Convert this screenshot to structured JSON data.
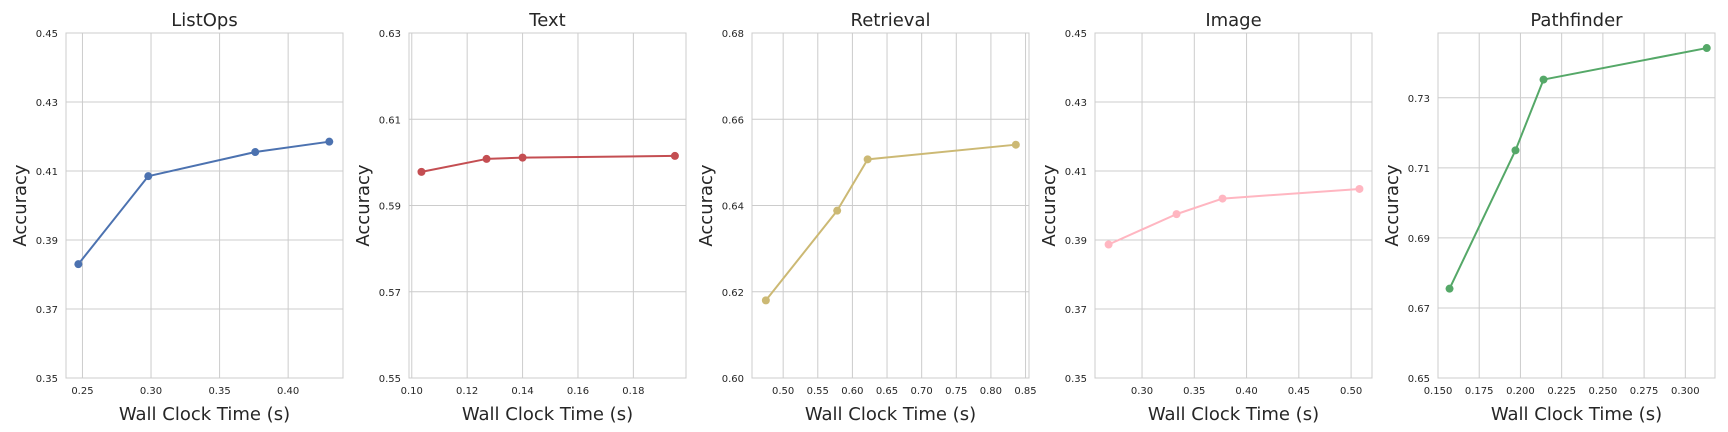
{
  "chart_data": [
    {
      "type": "line",
      "title": "ListOps",
      "xlabel": "Wall Clock Time (s)",
      "ylabel": "Accuracy",
      "color": "#4c72b0",
      "x": [
        0.247,
        0.298,
        0.376,
        0.43
      ],
      "y": [
        0.383,
        0.4085,
        0.4155,
        0.4185
      ],
      "xlim": [
        0.238,
        0.44
      ],
      "ylim": [
        0.35,
        0.45
      ],
      "xticks": [
        0.25,
        0.3,
        0.35,
        0.4
      ],
      "xtick_labels": [
        "0.25",
        "0.30",
        "0.35",
        "0.40"
      ],
      "yticks": [
        0.35,
        0.37,
        0.39,
        0.41,
        0.43,
        0.45
      ],
      "ytick_labels": [
        "0.35",
        "0.37",
        "0.39",
        "0.41",
        "0.43",
        "0.45"
      ],
      "grid": true
    },
    {
      "type": "line",
      "title": "Text",
      "xlabel": "Wall Clock Time (s)",
      "ylabel": "Accuracy",
      "color": "#c44e52",
      "x": [
        0.1035,
        0.127,
        0.14,
        0.195
      ],
      "y": [
        0.5978,
        0.6008,
        0.6011,
        0.6015
      ],
      "xlim": [
        0.099,
        0.199
      ],
      "ylim": [
        0.55,
        0.63
      ],
      "xticks": [
        0.1,
        0.12,
        0.14,
        0.16,
        0.18
      ],
      "xtick_labels": [
        "0.10",
        "0.12",
        "0.14",
        "0.16",
        "0.18"
      ],
      "yticks": [
        0.55,
        0.57,
        0.59,
        0.61,
        0.63
      ],
      "ytick_labels": [
        "0.55",
        "0.57",
        "0.59",
        "0.61",
        "0.63"
      ],
      "grid": true
    },
    {
      "type": "line",
      "title": "Retrieval",
      "xlabel": "Wall Clock Time (s)",
      "ylabel": "Accuracy",
      "color": "#ccb974",
      "x": [
        0.475,
        0.578,
        0.622,
        0.836
      ],
      "y": [
        0.618,
        0.6388,
        0.6507,
        0.6541
      ],
      "xlim": [
        0.455,
        0.855
      ],
      "ylim": [
        0.6,
        0.68
      ],
      "xticks": [
        0.5,
        0.55,
        0.6,
        0.65,
        0.7,
        0.75,
        0.8,
        0.85
      ],
      "xtick_labels": [
        "0.50",
        "0.55",
        "0.60",
        "0.65",
        "0.70",
        "0.75",
        "0.80",
        "0.85"
      ],
      "yticks": [
        0.6,
        0.62,
        0.64,
        0.66,
        0.68
      ],
      "ytick_labels": [
        "0.60",
        "0.62",
        "0.64",
        "0.66",
        "0.68"
      ],
      "grid": true
    },
    {
      "type": "line",
      "title": "Image",
      "xlabel": "Wall Clock Time (s)",
      "ylabel": "Accuracy",
      "color": "#ffb6c1",
      "x": [
        0.268,
        0.333,
        0.377,
        0.508
      ],
      "y": [
        0.3887,
        0.3975,
        0.402,
        0.4048
      ],
      "xlim": [
        0.255,
        0.52
      ],
      "ylim": [
        0.35,
        0.45
      ],
      "xticks": [
        0.3,
        0.35,
        0.4,
        0.45,
        0.5
      ],
      "xtick_labels": [
        "0.30",
        "0.35",
        "0.40",
        "0.45",
        "0.50"
      ],
      "yticks": [
        0.35,
        0.37,
        0.39,
        0.41,
        0.43,
        0.45
      ],
      "ytick_labels": [
        "0.35",
        "0.37",
        "0.39",
        "0.41",
        "0.43",
        "0.45"
      ],
      "grid": true
    },
    {
      "type": "line",
      "title": "Pathfinder",
      "xlabel": "Wall Clock Time (s)",
      "ylabel": "Accuracy",
      "color": "#55a868",
      "x": [
        0.157,
        0.197,
        0.214,
        0.313
      ],
      "y": [
        0.6755,
        0.715,
        0.7352,
        0.7442
      ],
      "xlim": [
        0.15,
        0.318
      ],
      "ylim": [
        0.65,
        0.7485
      ],
      "xticks": [
        0.15,
        0.175,
        0.2,
        0.225,
        0.25,
        0.275,
        0.3
      ],
      "xtick_labels": [
        "0.150",
        "0.175",
        "0.200",
        "0.225",
        "0.250",
        "0.275",
        "0.300"
      ],
      "yticks": [
        0.65,
        0.67,
        0.69,
        0.71,
        0.73
      ],
      "ytick_labels": [
        "0.65",
        "0.67",
        "0.69",
        "0.71",
        "0.73"
      ],
      "grid": true
    }
  ]
}
